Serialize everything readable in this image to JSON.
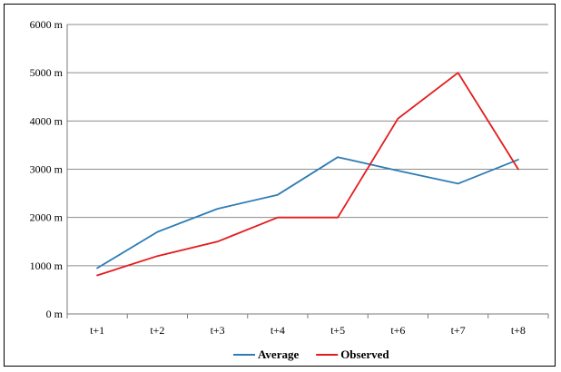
{
  "chart_data": {
    "type": "line",
    "title": "",
    "xlabel": "",
    "ylabel": "",
    "categories": [
      "t+1",
      "t+2",
      "t+3",
      "t+4",
      "t+5",
      "t+6",
      "t+7",
      "t+8"
    ],
    "y_ticks": [
      "0 m",
      "1000 m",
      "2000 m",
      "3000 m",
      "4000 m",
      "5000 m",
      "6000 m"
    ],
    "ylim": [
      0,
      6000
    ],
    "grid": "horizontal",
    "legend_position": "bottom",
    "series": [
      {
        "name": "Average",
        "color": "#2E7DB5",
        "values": [
          950,
          1700,
          2180,
          2470,
          3250,
          2970,
          2700,
          3200
        ]
      },
      {
        "name": "Observed",
        "color": "#E41A1C",
        "values": [
          800,
          1200,
          1500,
          2000,
          2000,
          4050,
          5000,
          3000
        ]
      }
    ]
  }
}
